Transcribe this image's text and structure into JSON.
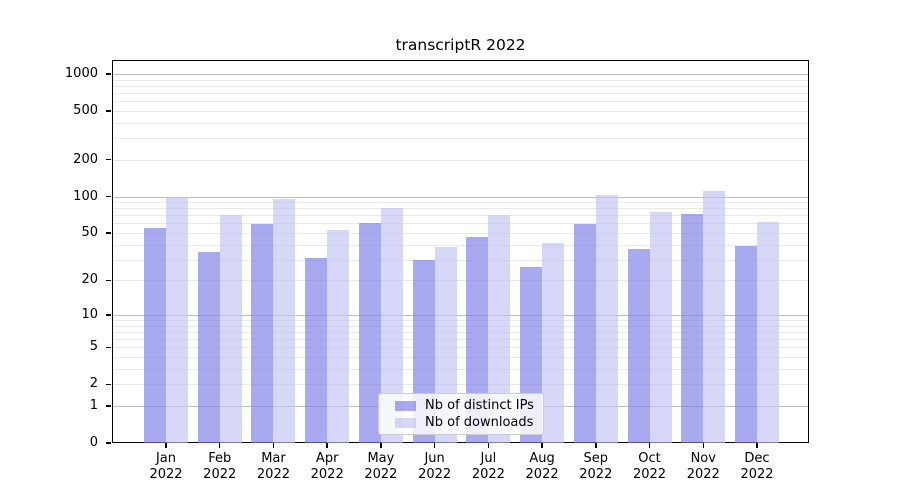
{
  "figure": {
    "title": "transcriptR 2022"
  },
  "chart_data": {
    "type": "bar",
    "title": "transcriptR 2022",
    "categories": [
      "Jan",
      "Feb",
      "Mar",
      "Apr",
      "May",
      "Jun",
      "Jul",
      "Aug",
      "Sep",
      "Oct",
      "Nov",
      "Dec"
    ],
    "year_label": "2022",
    "series": [
      {
        "name": "Nb of distinct IPs",
        "color": "rgba(123,123,232,0.65)",
        "solid_color": "#a9a9f0",
        "values": [
          55,
          35,
          59,
          31,
          61,
          30,
          46,
          26,
          59,
          37,
          72,
          39
        ]
      },
      {
        "name": "Nb of downloads",
        "color": "rgba(193,193,243,0.65)",
        "solid_color": "#d8d8f6",
        "values": [
          98,
          70,
          95,
          53,
          80,
          38,
          71,
          41,
          102,
          75,
          112,
          62
        ]
      }
    ],
    "y_ticks": [
      0,
      1,
      2,
      5,
      10,
      20,
      50,
      100,
      200,
      500,
      1000
    ],
    "y_scale": "log10(value+1)",
    "ylim": [
      0,
      1300
    ],
    "xlabel": "",
    "ylabel": "",
    "grid": true,
    "legend_position": "lower center"
  },
  "colors": {
    "axis": "#000000",
    "grid_major": "#bfbfbf",
    "grid_minor": "#e9e9e9",
    "legend_border": "#cccccc",
    "text": "#000000",
    "background": "#ffffff"
  }
}
